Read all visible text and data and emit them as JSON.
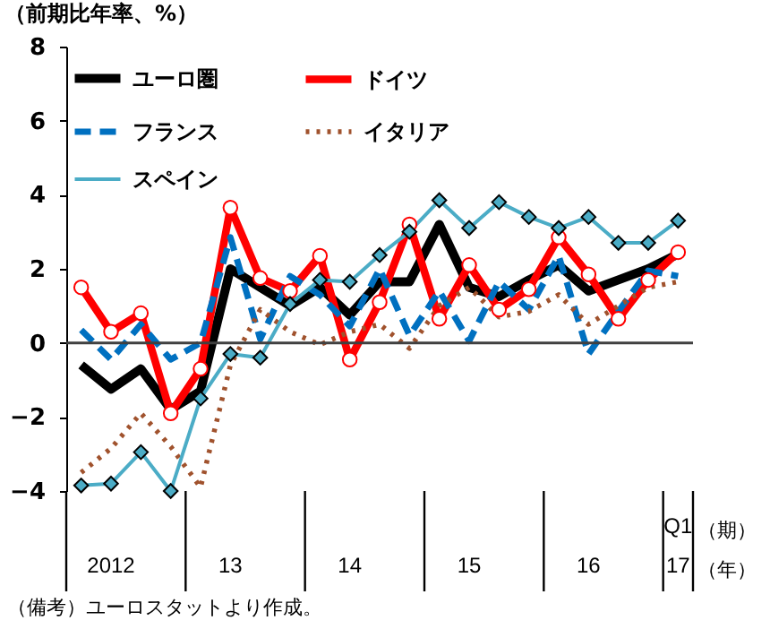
{
  "chart_data": {
    "type": "line",
    "ylabel": "（前期比年率、%）",
    "xlabel": "（期）",
    "annotations": [
      "（年）",
      "（備考）ユーロスタットより作成。"
    ],
    "categories": [
      null,
      "2012",
      null,
      null,
      null,
      "13",
      null,
      null,
      null,
      "14",
      null,
      null,
      null,
      "15",
      null,
      null,
      null,
      "16",
      null,
      null,
      "Q1\n17"
    ],
    "ylim": [
      -4,
      8
    ],
    "yticks": [
      -4,
      -2,
      0,
      2,
      4,
      6,
      8
    ],
    "ref_lines": [
      {
        "axis": "y",
        "value": 0,
        "color": "#404040"
      }
    ],
    "legend": "top left",
    "series": [
      {
        "name": "ユーロ圏",
        "color": "#000000",
        "line_style": "solid",
        "marker": "none",
        "values": [
          -0.6,
          -1.25,
          -0.7,
          -1.8,
          -1.3,
          2.0,
          1.5,
          1.0,
          1.5,
          0.75,
          1.65,
          1.65,
          3.2,
          1.5,
          1.25,
          1.7,
          2.1,
          1.4,
          1.7,
          2.0,
          2.4
        ]
      },
      {
        "name": "ドイツ",
        "color": "#ff0000",
        "line_style": "solid",
        "marker": "circle",
        "values": [
          1.5,
          0.3,
          0.8,
          -1.9,
          -0.7,
          3.65,
          1.75,
          1.4,
          2.35,
          -0.45,
          1.1,
          3.2,
          0.65,
          2.1,
          0.9,
          1.45,
          2.85,
          1.85,
          0.65,
          1.7,
          2.45
        ]
      },
      {
        "name": "フランス",
        "color": "#0070c0",
        "line_style": "dashed",
        "marker": "none",
        "values": [
          0.35,
          -0.45,
          0.5,
          -0.45,
          0.0,
          2.85,
          0.1,
          1.8,
          1.3,
          0.45,
          2.0,
          0.2,
          1.4,
          0.05,
          1.65,
          0.9,
          2.35,
          -0.3,
          0.85,
          1.95,
          1.8
        ]
      },
      {
        "name": "イタリア",
        "color": "#a0522d",
        "line_style": "dotted",
        "marker": "none",
        "values": [
          -3.5,
          -2.85,
          -1.9,
          -2.8,
          -3.9,
          -0.6,
          0.9,
          0.3,
          -0.05,
          0.3,
          0.5,
          -0.15,
          1.0,
          1.5,
          0.7,
          0.85,
          1.3,
          0.5,
          1.0,
          1.5,
          1.65
        ]
      },
      {
        "name": "スペイン",
        "color": "#4bacc6",
        "line_style": "solid",
        "marker": "diamond",
        "values": [
          -3.85,
          -3.8,
          -2.95,
          -4.0,
          -1.5,
          -0.3,
          -0.4,
          1.05,
          1.7,
          1.65,
          2.37,
          3.0,
          3.85,
          3.1,
          3.8,
          3.4,
          3.1,
          3.4,
          2.7,
          2.7,
          3.3
        ]
      }
    ]
  }
}
